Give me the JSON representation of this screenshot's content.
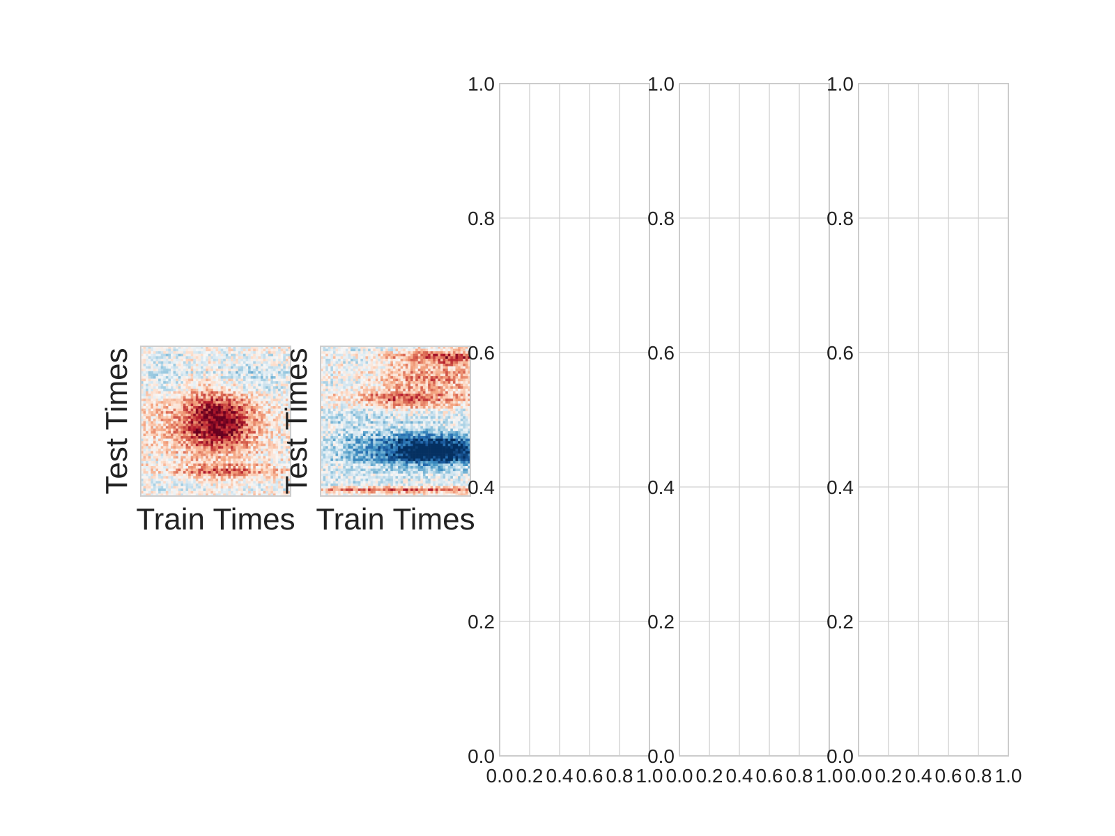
{
  "chart_data": [
    {
      "type": "heatmap",
      "xlabel": "Train Times",
      "ylabel": "Test Times",
      "colormap": "RdBu_r",
      "features": [
        {
          "x": 0.55,
          "y": 0.5,
          "sx": 0.16,
          "sy": 0.14,
          "amp": 0.85
        },
        {
          "x": 0.3,
          "y": 0.45,
          "sx": 0.22,
          "sy": 0.2,
          "amp": 0.35
        },
        {
          "x": 0.55,
          "y": 0.16,
          "sx": 0.3,
          "sy": 0.03,
          "amp": 0.5
        },
        {
          "x": 0.15,
          "y": 0.8,
          "sx": 0.12,
          "sy": 0.12,
          "amp": -0.25
        },
        {
          "x": 0.7,
          "y": 0.78,
          "sx": 0.2,
          "sy": 0.1,
          "amp": -0.25
        },
        {
          "x": 0.2,
          "y": 0.2,
          "sx": 0.15,
          "sy": 0.15,
          "amp": -0.15
        }
      ]
    },
    {
      "type": "heatmap",
      "xlabel": "Train Times",
      "ylabel": "Test Times",
      "colormap": "RdBu_r",
      "features": [
        {
          "x": 0.8,
          "y": 0.3,
          "sx": 0.25,
          "sy": 0.07,
          "amp": -0.85
        },
        {
          "x": 0.6,
          "y": 0.33,
          "sx": 0.3,
          "sy": 0.1,
          "amp": -0.5
        },
        {
          "x": 0.85,
          "y": 0.92,
          "sx": 0.25,
          "sy": 0.04,
          "amp": 0.65
        },
        {
          "x": 0.55,
          "y": 0.65,
          "sx": 0.3,
          "sy": 0.04,
          "amp": 0.6
        },
        {
          "x": 0.75,
          "y": 0.78,
          "sx": 0.3,
          "sy": 0.05,
          "amp": 0.45
        },
        {
          "x": 0.5,
          "y": 0.04,
          "sx": 0.5,
          "sy": 0.015,
          "amp": 0.55
        },
        {
          "x": 0.2,
          "y": 0.5,
          "sx": 0.15,
          "sy": 0.3,
          "amp": -0.15
        }
      ]
    },
    {
      "type": "line",
      "series": [],
      "xlim": [
        0,
        1
      ],
      "ylim": [
        0,
        1
      ],
      "xticks": [
        "0.0",
        "0.2",
        "0.4",
        "0.6",
        "0.8",
        "1.0"
      ],
      "yticks": [
        "0.0",
        "0.2",
        "0.4",
        "0.6",
        "0.8",
        "1.0"
      ],
      "grid": true
    },
    {
      "type": "line",
      "series": [],
      "xlim": [
        0,
        1
      ],
      "ylim": [
        0,
        1
      ],
      "xticks": [
        "0.0",
        "0.2",
        "0.4",
        "0.6",
        "0.8",
        "1.0"
      ],
      "yticks": [
        "0.0",
        "0.2",
        "0.4",
        "0.6",
        "0.8",
        "1.0"
      ],
      "grid": true
    },
    {
      "type": "line",
      "series": [],
      "xlim": [
        0,
        1
      ],
      "ylim": [
        0,
        1
      ],
      "xticks": [
        "0.0",
        "0.2",
        "0.4",
        "0.6",
        "0.8",
        "1.0"
      ],
      "yticks": [
        "0.0",
        "0.2",
        "0.4",
        "0.6",
        "0.8",
        "1.0"
      ],
      "grid": true
    }
  ],
  "colors": {
    "grid": "#d0d0d0",
    "frame": "#cccccc",
    "text": "#222222"
  }
}
